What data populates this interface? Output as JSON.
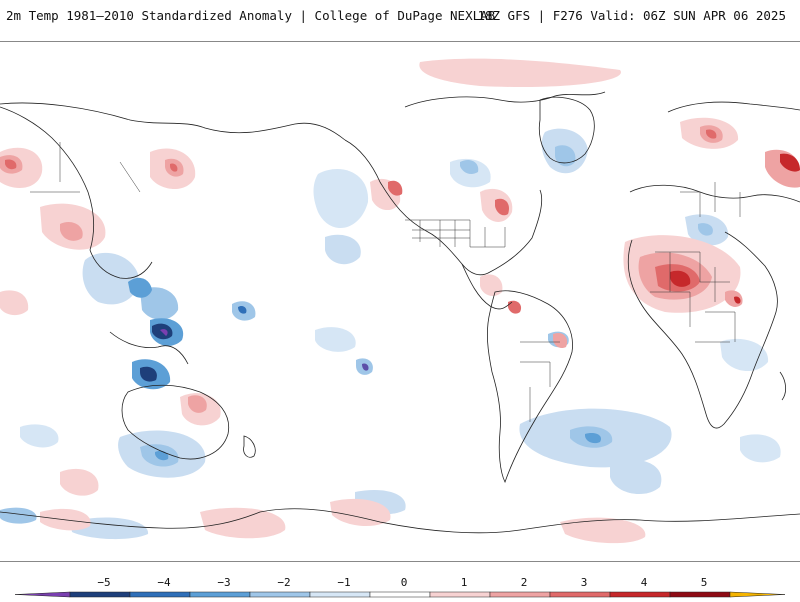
{
  "header": {
    "title": "2m Temp 1981–2010 Standardized Anomaly | College of DuPage NEXLAB",
    "run_info": "18Z GFS | F276 Valid: 06Z SUN APR 06 2025"
  },
  "map": {
    "projection": "global cylindrical",
    "field": "2m temperature standardized anomaly"
  },
  "colorbar": {
    "ticks": [
      "−5",
      "−4",
      "−3",
      "−2",
      "−1",
      "0",
      "1",
      "2",
      "3",
      "4",
      "5"
    ],
    "colors": [
      "#7a3fb0",
      "#1e3f7a",
      "#2f6fb8",
      "#5c9fd6",
      "#9fc6e8",
      "#d6e6f5",
      "#ffffff",
      "#f7d2d2",
      "#eea3a3",
      "#e06a6a",
      "#c6282b",
      "#8e0b14",
      "#f5b400"
    ]
  }
}
